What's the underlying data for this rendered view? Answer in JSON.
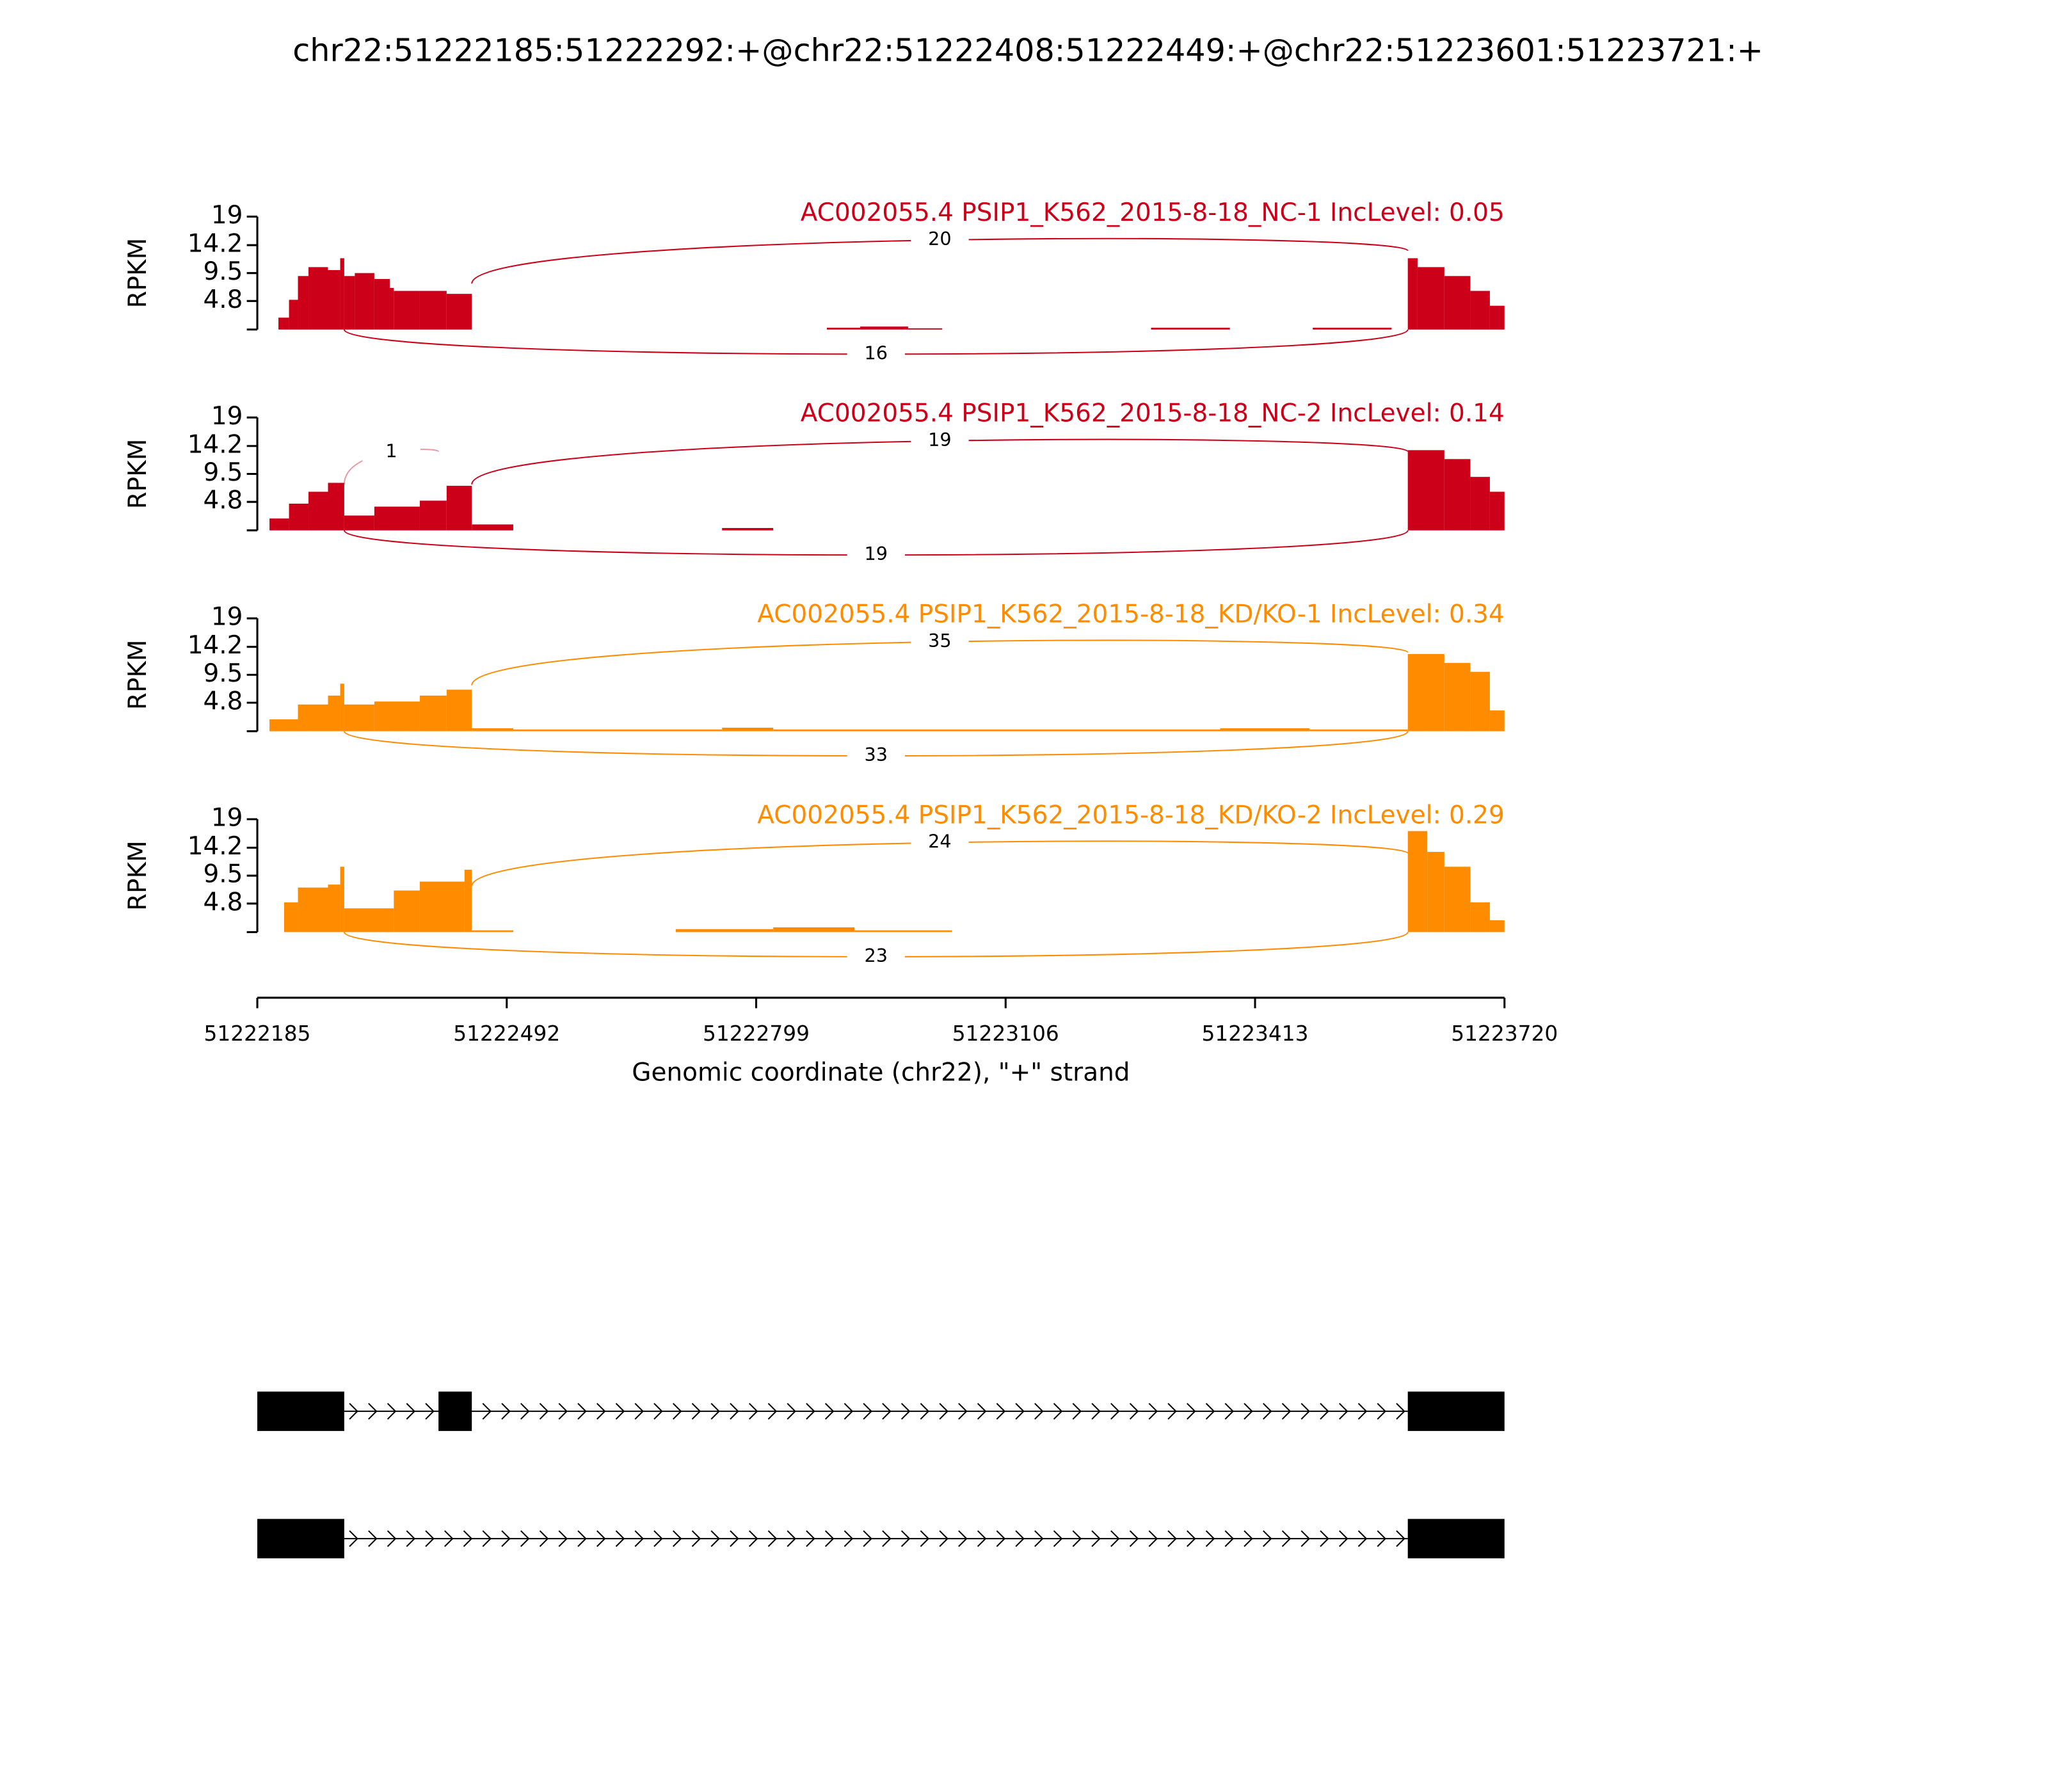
{
  "chart_data": {
    "type": "sashimi",
    "title": "chr22:51222185:51222292:+@chr22:51222408:51222449:+@chr22:51223601:51223721:+",
    "xlabel": "Genomic coordinate (chr22), \"+\" strand",
    "xlim": [
      51222185,
      51223720
    ],
    "xticks": [
      51222185,
      51222492,
      51222799,
      51223106,
      51223413,
      51223720
    ],
    "tracks": [
      {
        "name": "AC002055.4 PSIP1_K562_2015-8-18_NC-1 IncLevel: 0.05",
        "color": "#cc0018",
        "ylabel": "RPKM",
        "ylim": [
          0,
          19
        ],
        "yticks": [
          4.8,
          9.5,
          14.2,
          19
        ],
        "bins": [
          51222211,
          51222224,
          51222235,
          51222248,
          51222272,
          51222287,
          51222292,
          51222305,
          51222329,
          51222348,
          51222353,
          51222385,
          51222418,
          51222449,
          51222886,
          51222927,
          51222986,
          51223028,
          51223285,
          51223382,
          51223484,
          51223581,
          51223601,
          51223613,
          51223646,
          51223678,
          51223702,
          51223720
        ],
        "values": [
          2,
          5,
          9,
          10.5,
          10,
          12,
          9,
          9.5,
          8.5,
          7,
          6.5,
          6.5,
          6,
          0,
          0.3,
          0.5,
          0.2,
          0,
          0.3,
          0,
          0.3,
          0,
          12,
          10.5,
          9,
          6.5,
          4
        ],
        "junctions": [
          {
            "start": 51222449,
            "end": 51223601,
            "count": 20,
            "position": "above"
          },
          {
            "start": 51222292,
            "end": 51223601,
            "count": 16,
            "position": "below"
          }
        ]
      },
      {
        "name": "AC002055.4 PSIP1_K562_2015-8-18_NC-2 IncLevel: 0.14",
        "color": "#cc0018",
        "ylabel": "RPKM",
        "ylim": [
          0,
          19
        ],
        "yticks": [
          4.8,
          9.5,
          14.2,
          19
        ],
        "bins": [
          51222200,
          51222224,
          51222248,
          51222272,
          51222292,
          51222329,
          51222385,
          51222418,
          51222449,
          51222500,
          51222757,
          51222820,
          51223601,
          51223646,
          51223678,
          51223702,
          51223720
        ],
        "values": [
          2,
          4.5,
          6.5,
          8,
          2.5,
          4,
          5,
          7.5,
          1,
          0,
          0.4,
          0,
          13.5,
          12,
          9,
          6.5
        ],
        "junctions": [
          {
            "start": 51222292,
            "end": 51222408,
            "count": 1,
            "position": "above"
          },
          {
            "start": 51222449,
            "end": 51223601,
            "count": 19,
            "position": "above"
          },
          {
            "start": 51222292,
            "end": 51223601,
            "count": 19,
            "position": "below"
          }
        ]
      },
      {
        "name": "AC002055.4 PSIP1_K562_2015-8-18_KD/KO-1 IncLevel: 0.34",
        "color": "#ff8c00",
        "ylabel": "RPKM",
        "ylim": [
          0,
          19
        ],
        "yticks": [
          4.8,
          9.5,
          14.2,
          19
        ],
        "bins": [
          51222200,
          51222235,
          51222272,
          51222287,
          51222292,
          51222329,
          51222385,
          51222418,
          51222449,
          51222500,
          51222757,
          51222820,
          51223370,
          51223480,
          51223601,
          51223646,
          51223678,
          51223702,
          51223720
        ],
        "values": [
          2,
          4.5,
          6,
          8,
          4.5,
          5,
          6,
          7,
          0.5,
          0.3,
          0.6,
          0.3,
          0.5,
          0.3,
          13,
          11.5,
          10,
          3.5
        ],
        "junctions": [
          {
            "start": 51222449,
            "end": 51223601,
            "count": 35,
            "position": "above"
          },
          {
            "start": 51222292,
            "end": 51223601,
            "count": 33,
            "position": "below"
          }
        ]
      },
      {
        "name": "AC002055.4 PSIP1_K562_2015-8-18_KD/KO-2 IncLevel: 0.29",
        "color": "#ff8c00",
        "ylabel": "RPKM",
        "ylim": [
          0,
          19
        ],
        "yticks": [
          4.8,
          9.5,
          14.2,
          19
        ],
        "bins": [
          51222218,
          51222235,
          51222272,
          51222287,
          51222292,
          51222353,
          51222385,
          51222440,
          51222449,
          51222500,
          51222700,
          51222820,
          51222920,
          51223040,
          51223601,
          51223625,
          51223646,
          51223678,
          51223702,
          51223720
        ],
        "values": [
          5,
          7.5,
          8,
          11,
          4,
          7,
          8.5,
          10.5,
          0.3,
          0,
          0.5,
          0.8,
          0.3,
          0,
          17,
          13.5,
          11,
          5,
          2
        ],
        "junctions": [
          {
            "start": 51222449,
            "end": 51223601,
            "count": 24,
            "position": "above"
          },
          {
            "start": 51222292,
            "end": 51223601,
            "count": 23,
            "position": "below"
          }
        ]
      }
    ],
    "transcripts": [
      {
        "exons": [
          [
            51222185,
            51222292
          ],
          [
            51222408,
            51222449
          ],
          [
            51223601,
            51223720
          ]
        ]
      },
      {
        "exons": [
          [
            51222185,
            51222292
          ],
          [
            51223601,
            51223720
          ]
        ]
      }
    ]
  }
}
